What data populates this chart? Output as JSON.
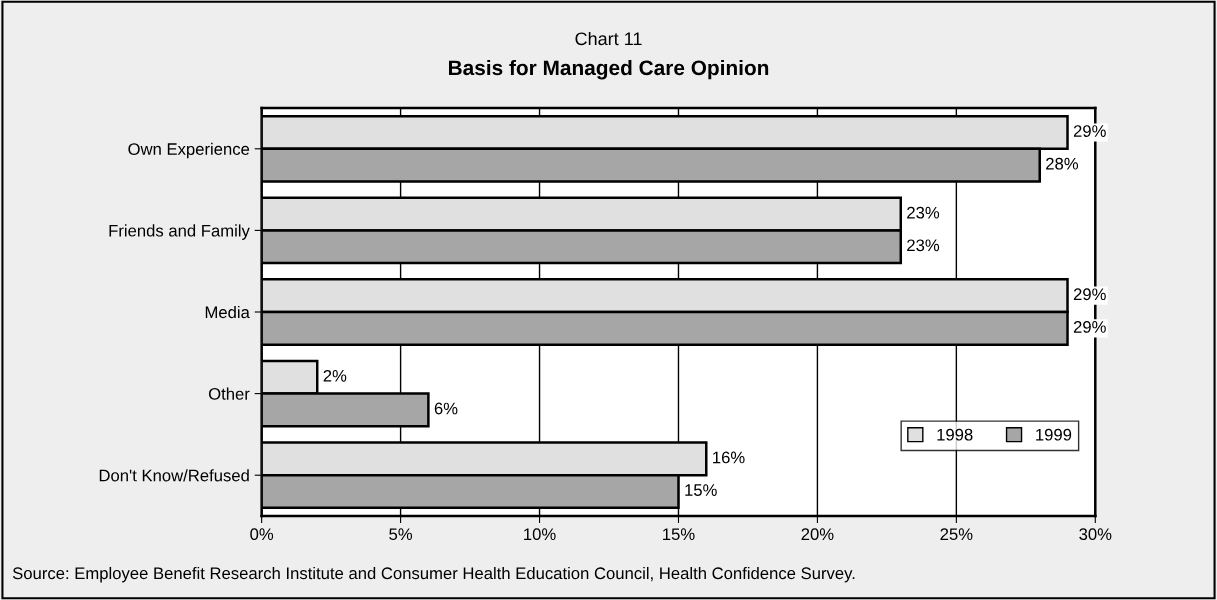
{
  "chart_data": {
    "type": "bar",
    "orientation": "horizontal",
    "subtitle": "Chart 11",
    "title": "Basis for Managed Care Opinion",
    "categories": [
      "Own Experience",
      "Friends and Family",
      "Media",
      "Other",
      "Don't Know/Refused"
    ],
    "series": [
      {
        "name": "1998",
        "color": "#e0e0e0",
        "values": [
          29,
          23,
          29,
          2,
          16
        ],
        "value_labels": [
          "29%",
          "23%",
          "29%",
          "2%",
          "16%"
        ]
      },
      {
        "name": "1999",
        "color": "#a6a6a6",
        "values": [
          28,
          23,
          29,
          6,
          15
        ],
        "value_labels": [
          "28%",
          "23%",
          "29%",
          "6%",
          "15%"
        ]
      }
    ],
    "xlim": [
      0,
      30
    ],
    "xticks": [
      {
        "value": 0,
        "label": "0%"
      },
      {
        "value": 5,
        "label": "5%"
      },
      {
        "value": 10,
        "label": "10%"
      },
      {
        "value": 15,
        "label": "15%"
      },
      {
        "value": 20,
        "label": "20%"
      },
      {
        "value": 25,
        "label": "25%"
      },
      {
        "value": 30,
        "label": "30%"
      }
    ],
    "grid": "x",
    "legend": "bottom right",
    "annotations": [
      "Source: Employee Benefit Research Institute and Consumer Health Education Council, Health Confidence Survey."
    ]
  }
}
